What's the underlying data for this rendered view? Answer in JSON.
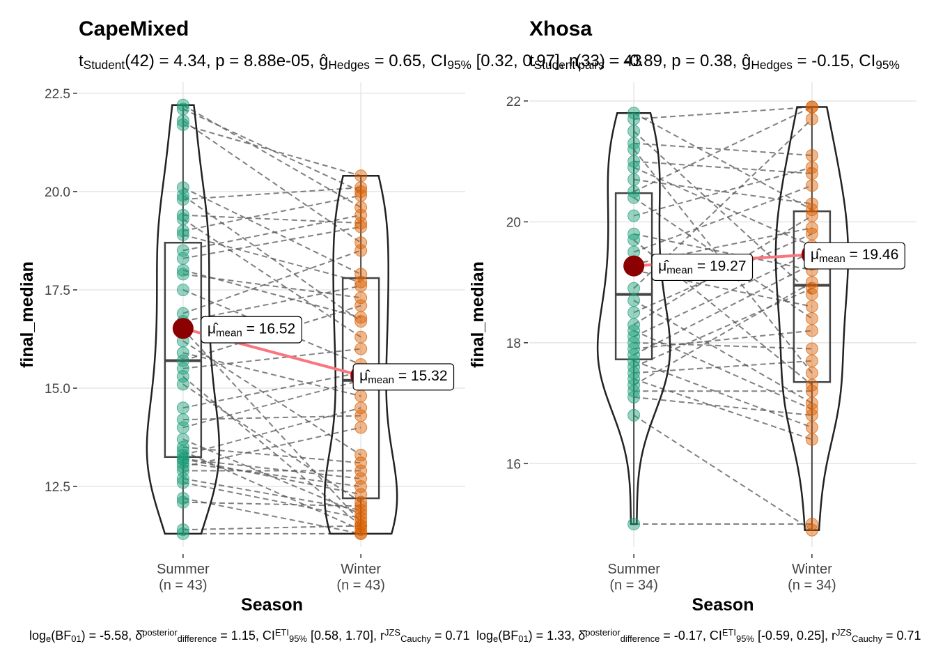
{
  "chart_data": [
    {
      "type": "violin",
      "title": "CapeMixed",
      "subtitle": [
        {
          "text": "t"
        },
        {
          "text": "Student",
          "sub": true
        },
        {
          "text": "(42) = 4.34, p = 8.88e-05, ĝ"
        },
        {
          "text": "Hedges",
          "sub": true
        },
        {
          "text": " = 0.65, CI"
        },
        {
          "text": "95%",
          "sub": true
        },
        {
          "text": " [0.32, 0.97], n"
        },
        {
          "text": "pairs",
          "sub": true
        },
        {
          "text": " = 43"
        }
      ],
      "caption": [
        {
          "text": "log"
        },
        {
          "text": "e",
          "sub": true
        },
        {
          "text": "(BF"
        },
        {
          "text": "01",
          "sub": true
        },
        {
          "text": ") = -5.58, δ̂"
        },
        {
          "text": "posterior",
          "sup": true
        },
        {
          "text": "difference",
          "sub": true
        },
        {
          "text": " = 1.15, CI"
        },
        {
          "text": "ETI",
          "sup": true
        },
        {
          "text": "95%",
          "sub": true
        },
        {
          "text": " [0.58, 1.70], r"
        },
        {
          "text": "JZS",
          "sup": true
        },
        {
          "text": "Cauchy",
          "sub": true
        },
        {
          "text": " = 0.71"
        }
      ],
      "x_label": "Season",
      "y_label": "final_median",
      "categories": [
        "Summer",
        "Winter"
      ],
      "counts": [
        "(n = 43)",
        "(n = 43)"
      ],
      "series": [
        {
          "color": "#1b9e77",
          "values": [
            22.2,
            22.1,
            21.8,
            21.7,
            20.1,
            19.9,
            19.8,
            19.4,
            19.3,
            19.0,
            18.9,
            18.5,
            18.3,
            18.0,
            17.9,
            17.5,
            16.9,
            16.7,
            16.5,
            16.2,
            15.9,
            15.7,
            15.5,
            15.3,
            15.1,
            14.5,
            14.2,
            14.0,
            13.7,
            13.5,
            13.4,
            13.3,
            13.2,
            13.2,
            13.1,
            13.0,
            12.9,
            12.7,
            12.6,
            12.2,
            12.1,
            11.4,
            11.3
          ]
        },
        {
          "color": "#d95f02",
          "values": [
            19.6,
            20.0,
            18.7,
            20.4,
            17.9,
            16.7,
            20.1,
            19.2,
            16.3,
            19.9,
            17.7,
            19.4,
            19.1,
            16.8,
            17.3,
            15.6,
            18.5,
            17.6,
            11.6,
            13.3,
            14.8,
            17.1,
            16.0,
            11.5,
            12.1,
            15.4,
            14.3,
            15.2,
            11.8,
            13.1,
            11.4,
            14.5,
            12.7,
            12.3,
            12.5,
            14.0,
            12.9,
            11.9,
            11.7,
            11.3,
            12.0,
            11.5,
            11.3
          ]
        }
      ],
      "means": [
        16.52,
        15.32
      ],
      "mean_labels": [
        [
          {
            "text": "μ̂"
          },
          {
            "text": "mean",
            "sub": true
          },
          {
            "text": " = 16.52"
          }
        ],
        [
          {
            "text": "μ̂"
          },
          {
            "text": "mean",
            "sub": true
          },
          {
            "text": " = 15.32"
          }
        ]
      ],
      "mean_color": "#8b0000",
      "mean_line_color": "#f8767d",
      "ylim": [
        10.96,
        22.78
      ],
      "yticks": [
        12.5,
        {
          "value": 15,
          "label": "15.0"
        },
        {
          "value": 17.5,
          "label": "17.5"
        },
        {
          "value": 20,
          "label": "20.0"
        },
        {
          "value": 22.5,
          "label": "22.5"
        }
      ],
      "grid": true
    },
    {
      "type": "violin",
      "title": "Xhosa",
      "subtitle": [
        {
          "text": "t"
        },
        {
          "text": "Student",
          "sub": true
        },
        {
          "text": "(33) = -0.89, p = 0.38, ĝ"
        },
        {
          "text": "Hedges",
          "sub": true
        },
        {
          "text": " = -0.15, CI"
        },
        {
          "text": "95%",
          "sub": true
        }
      ],
      "caption": [
        {
          "text": "log"
        },
        {
          "text": "e",
          "sub": true
        },
        {
          "text": "(BF"
        },
        {
          "text": "01",
          "sub": true
        },
        {
          "text": ") = 1.33, δ̂"
        },
        {
          "text": "posterior",
          "sup": true
        },
        {
          "text": "difference",
          "sub": true
        },
        {
          "text": " = -0.17, CI"
        },
        {
          "text": "ETI",
          "sup": true
        },
        {
          "text": "95%",
          "sub": true
        },
        {
          "text": " [-0.59, 0.25], r"
        },
        {
          "text": "JZS",
          "sup": true
        },
        {
          "text": "Cauchy",
          "sub": true
        },
        {
          "text": " = 0.71"
        }
      ],
      "x_label": "Season",
      "y_label": "final_median",
      "categories": [
        "Summer",
        "Winter"
      ],
      "counts": [
        "(n = 34)",
        "(n = 34)"
      ],
      "series": [
        {
          "color": "#1b9e77",
          "values": [
            21.8,
            21.7,
            21.5,
            21.3,
            21.2,
            21.0,
            20.9,
            20.7,
            20.5,
            20.4,
            20.1,
            19.8,
            19.7,
            19.5,
            19.3,
            19.2,
            18.9,
            18.7,
            18.5,
            18.3,
            18.2,
            18.1,
            18.0,
            17.9,
            17.8,
            17.7,
            17.6,
            17.5,
            17.4,
            17.3,
            17.2,
            17.1,
            16.8,
            15.0
          ]
        },
        {
          "color": "#d95f02",
          "values": [
            20.2,
            21.9,
            18.8,
            21.1,
            17.5,
            20.8,
            19.6,
            20.3,
            21.9,
            18.4,
            20.9,
            19.2,
            17.3,
            20.6,
            19.9,
            18.6,
            21.7,
            17.0,
            19.8,
            20.1,
            16.9,
            19.5,
            17.9,
            18.2,
            19.3,
            16.6,
            18.9,
            17.7,
            16.4,
            19.0,
            17.2,
            16.8,
            14.9,
            15.0
          ]
        }
      ],
      "means": [
        19.27,
        19.46
      ],
      "mean_labels": [
        [
          {
            "text": "μ̂"
          },
          {
            "text": "mean",
            "sub": true
          },
          {
            "text": " = 19.27"
          }
        ],
        [
          {
            "text": "μ̂"
          },
          {
            "text": "mean",
            "sub": true
          },
          {
            "text": " = 19.46"
          }
        ]
      ],
      "mean_color": "#8b0000",
      "mean_line_color": "#f8767d",
      "ylim": [
        14.62,
        22.31
      ],
      "yticks": [
        16,
        18,
        20,
        22
      ],
      "grid": true
    }
  ]
}
